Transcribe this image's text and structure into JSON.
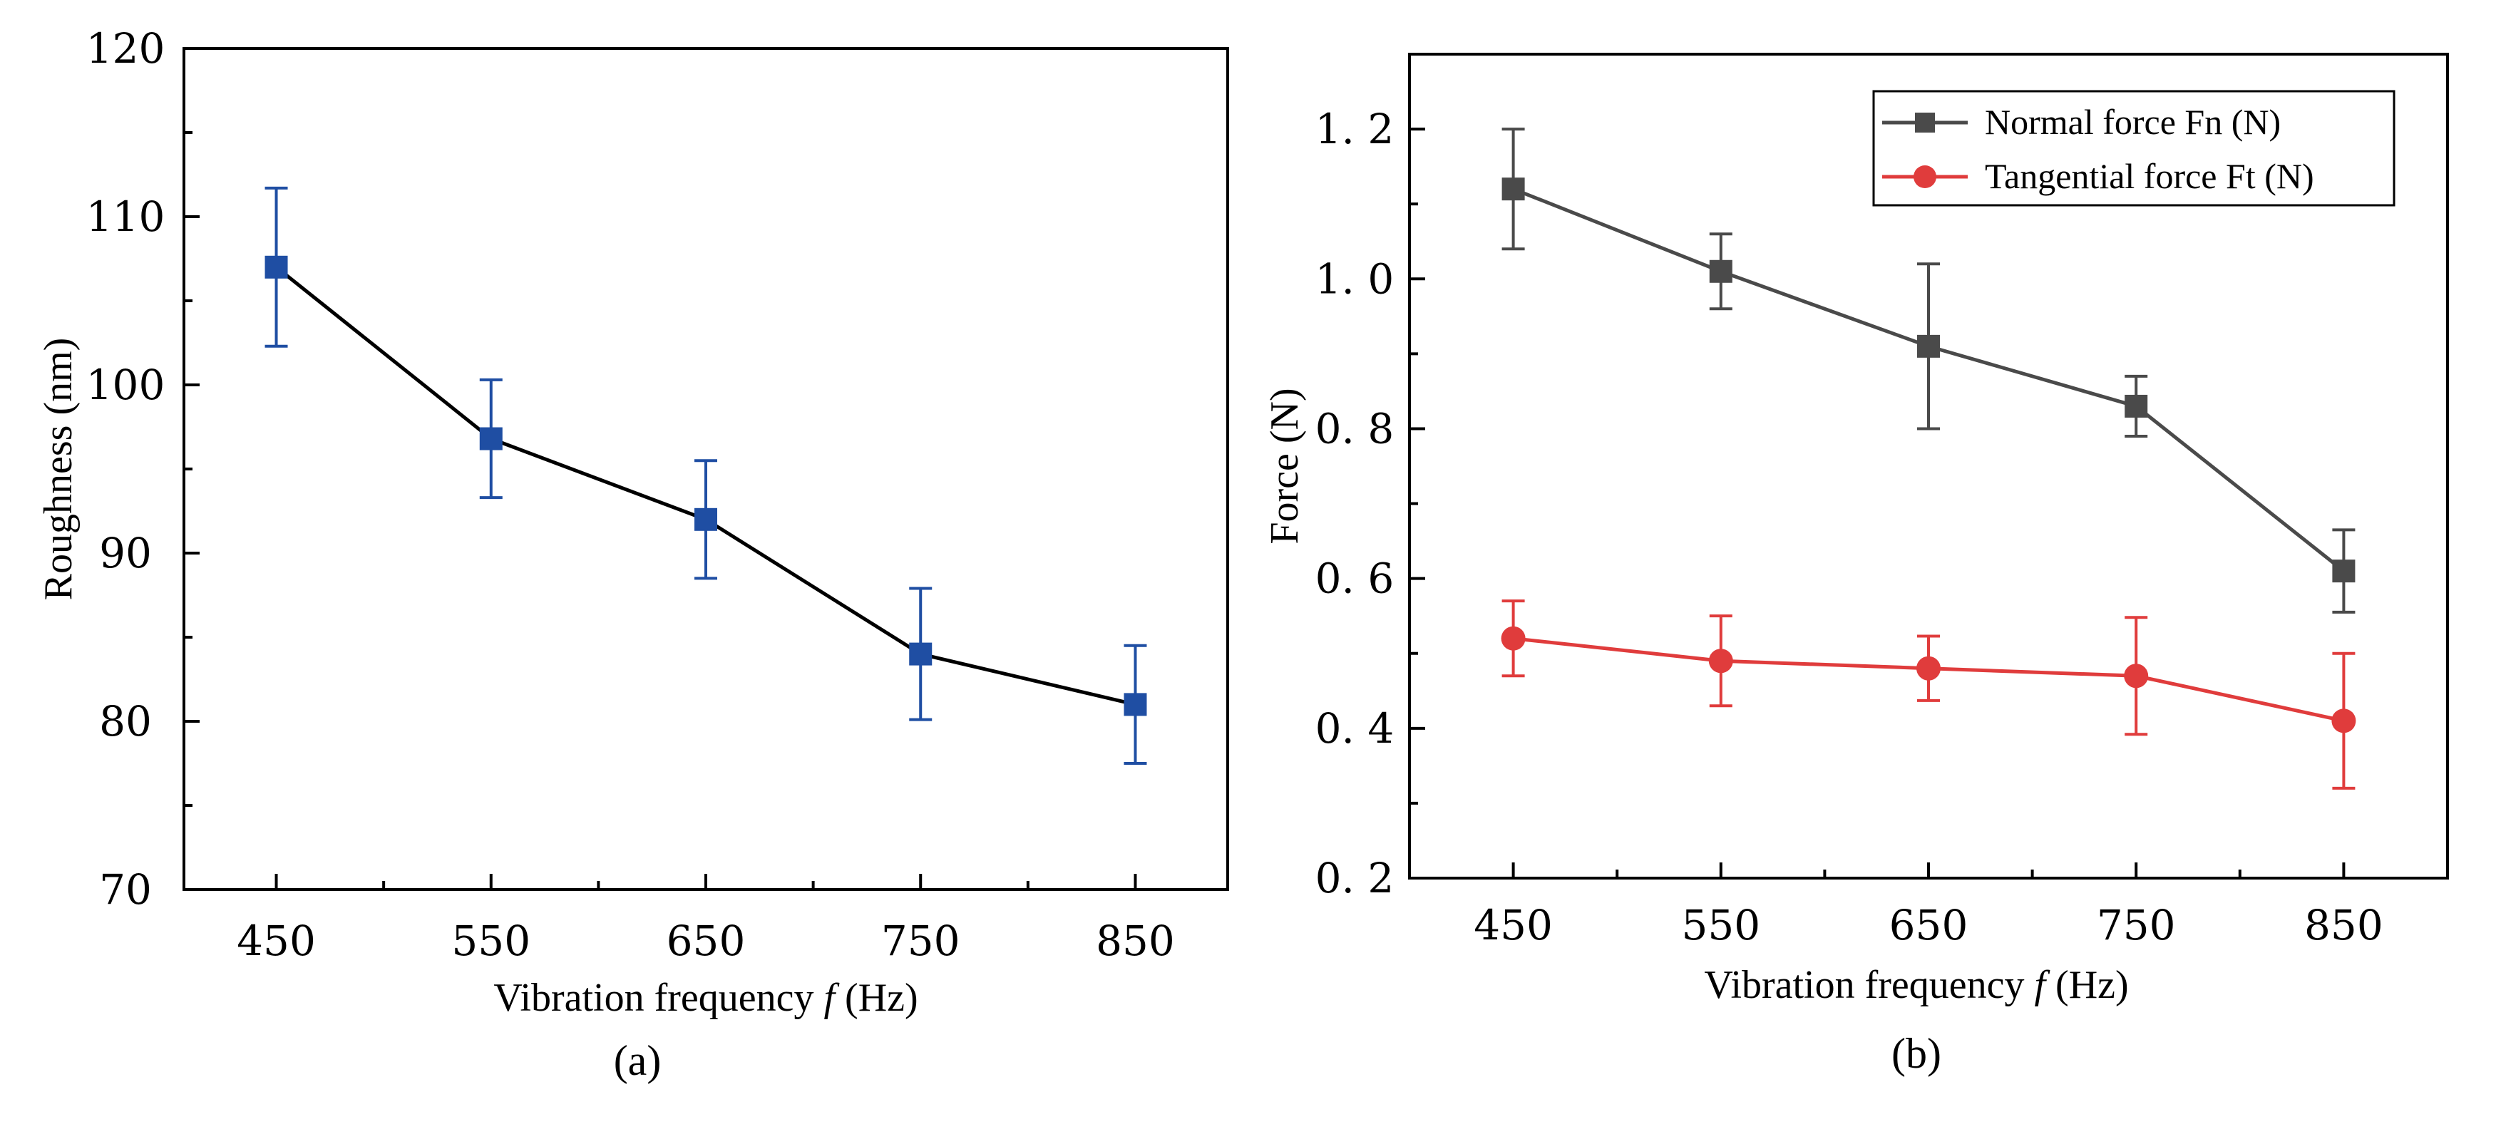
{
  "chart_data": [
    {
      "type": "line",
      "panel_label": "(a)",
      "x": [
        450,
        550,
        650,
        750,
        850
      ],
      "xticks": [
        "450",
        "550",
        "650",
        "750",
        "850"
      ],
      "xlim": [
        407,
        893
      ],
      "xlabel": "Vibration frequency f (Hz)",
      "ylabel": "Roughness (nm)",
      "ylim": [
        70,
        120
      ],
      "yticks": [
        70,
        80,
        90,
        100,
        110,
        120
      ],
      "series": [
        {
          "name": "Roughness",
          "color": "#1f4ea3",
          "line_color": "#000000",
          "marker": "square",
          "values": [
            107,
            96.8,
            92,
            84,
            81
          ],
          "error": [
            4.7,
            3.5,
            3.5,
            3.9,
            3.5
          ]
        }
      ]
    },
    {
      "type": "line",
      "panel_label": "(b)",
      "x": [
        450,
        550,
        650,
        750,
        850
      ],
      "xticks": [
        "450",
        "550",
        "650",
        "750",
        "850"
      ],
      "xlim": [
        400,
        900
      ],
      "xlabel": "Vibration frequency f (Hz)",
      "ylabel": "Force (N)",
      "ylim": [
        0.2,
        1.3
      ],
      "yticks": [
        "0. 2",
        "0. 4",
        "0. 6",
        "0. 8",
        "1. 0",
        "1. 2"
      ],
      "ytick_values": [
        0.2,
        0.4,
        0.6,
        0.8,
        1.0,
        1.2
      ],
      "legend_position": "top-right",
      "series": [
        {
          "name": "Normal force Fn (N)",
          "color": "#4a4a4a",
          "marker": "square",
          "values": [
            1.12,
            1.01,
            0.91,
            0.83,
            0.61
          ],
          "error": [
            0.08,
            0.05,
            0.11,
            0.04,
            0.055
          ]
        },
        {
          "name": "Tangential force Ft (N)",
          "color": "#e03c3c",
          "marker": "circle",
          "values": [
            0.52,
            0.49,
            0.48,
            0.47,
            0.41
          ],
          "error": [
            0.05,
            0.06,
            0.043,
            0.078,
            0.09
          ]
        }
      ]
    }
  ]
}
